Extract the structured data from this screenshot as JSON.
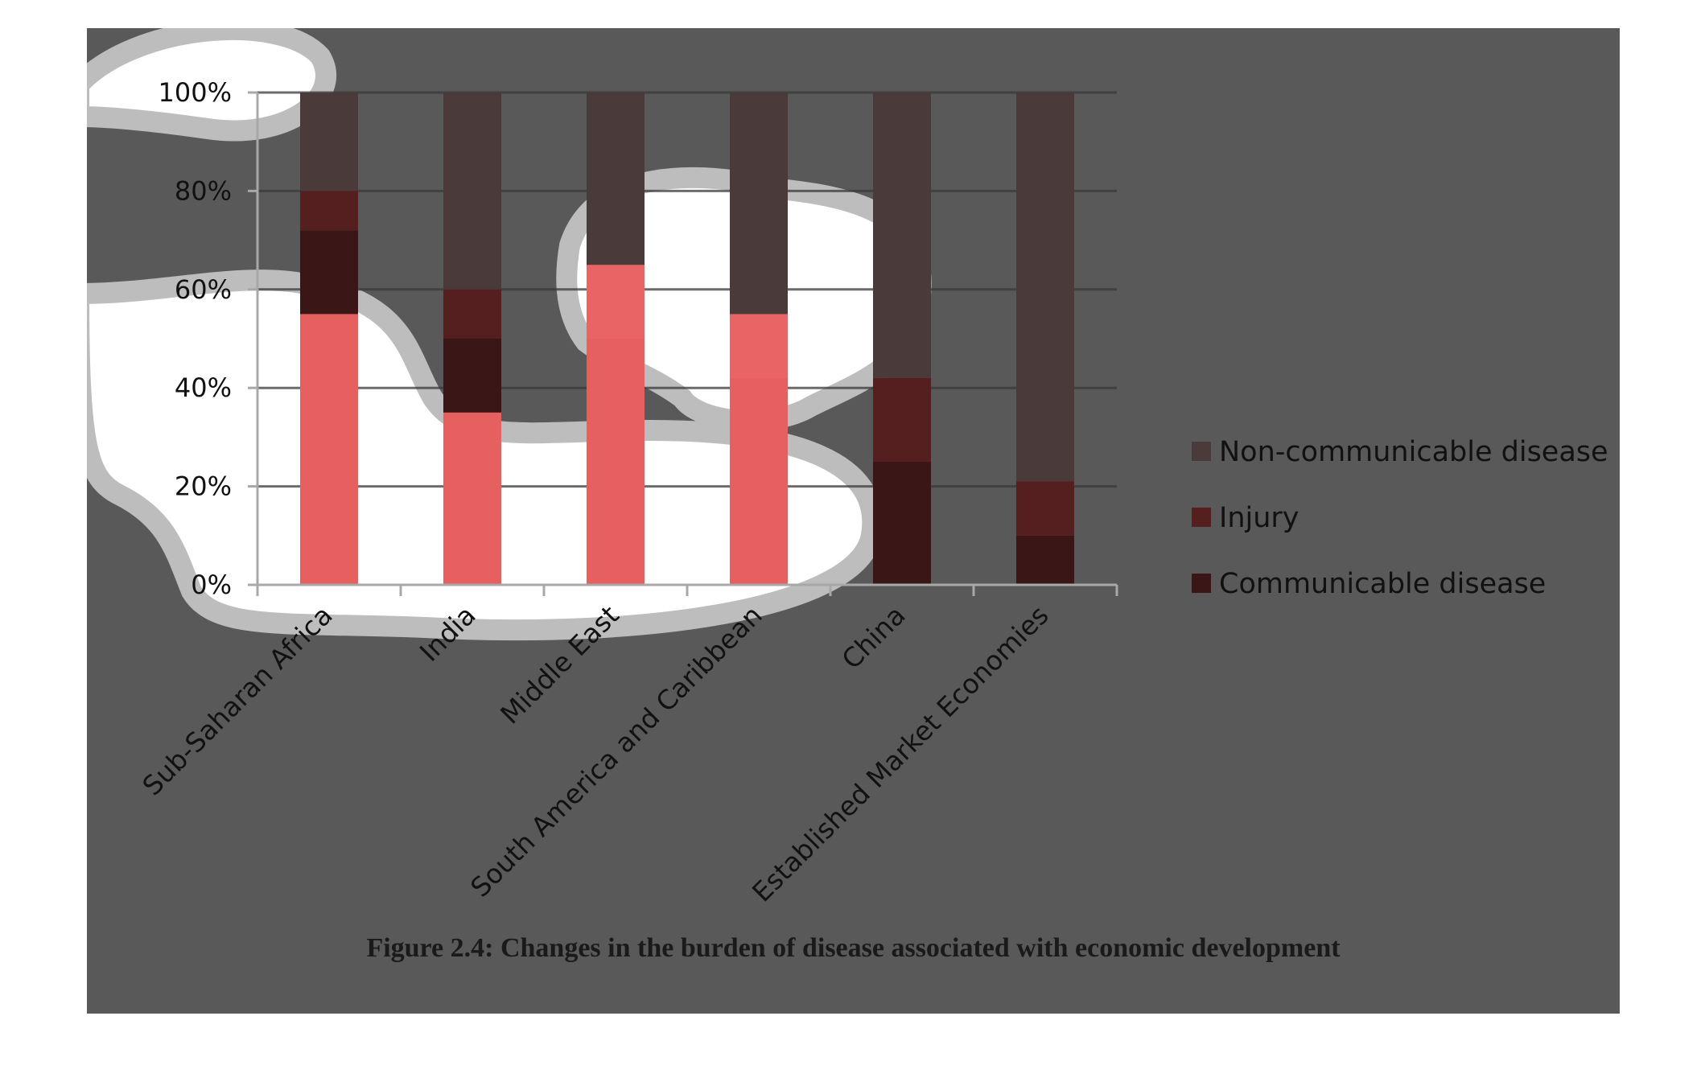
{
  "chart_data": {
    "type": "bar",
    "stacked": true,
    "percent": true,
    "categories": [
      "Sub-Saharan Africa",
      "India",
      "Middle East",
      "South America and Caribbean",
      "China",
      "Established Market Economies"
    ],
    "series": [
      {
        "name": "Communicable disease",
        "values": [
          72,
          50,
          50,
          42,
          25,
          10
        ],
        "color": "#3a1616"
      },
      {
        "name": "Injury",
        "values": [
          8,
          10,
          0,
          0,
          17,
          11
        ],
        "color": "#561f1f"
      },
      {
        "name": "Non-communicable disease",
        "values": [
          20,
          40,
          50,
          58,
          58,
          79
        ],
        "color": "#4a3a3a"
      }
    ],
    "highlight_overlay": {
      "color": "#ff6b6b",
      "values": [
        55,
        35,
        65,
        55,
        0,
        0
      ]
    },
    "yticks": [
      "0%",
      "20%",
      "40%",
      "60%",
      "80%",
      "100%"
    ],
    "ylim": [
      0,
      100
    ],
    "grid": true,
    "legend_position": "right"
  },
  "caption": "Figure 2.4: Changes in the burden of disease associated with economic development"
}
